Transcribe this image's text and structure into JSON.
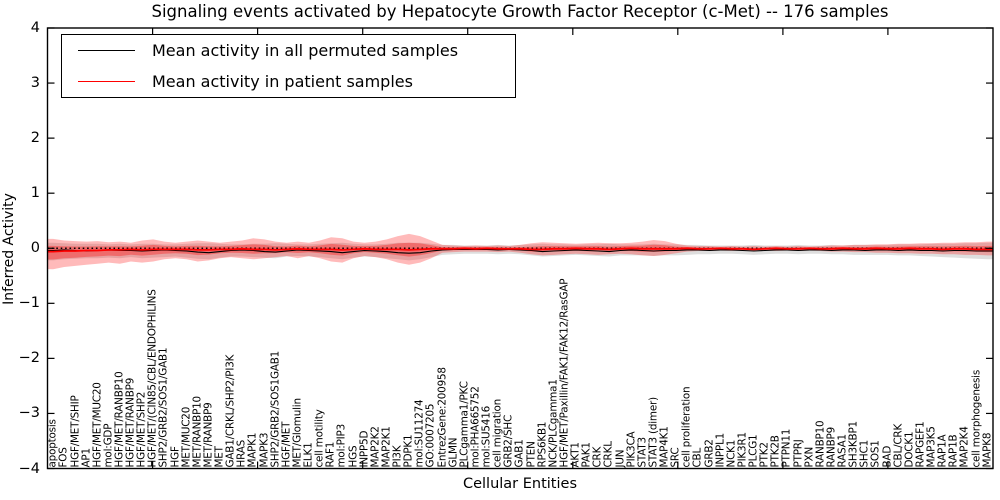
{
  "title": "Signaling events activated by Hepatocyte Growth Factor Receptor (c-Met) -- 176 samples",
  "axes": {
    "y_label": "Inferred Activity",
    "x_label": "Cellular Entities",
    "y_ticks": [
      "4",
      "3",
      "2",
      "1",
      "0",
      "−1",
      "−2",
      "−3",
      "−4"
    ],
    "y_range": [
      -4,
      4
    ]
  },
  "legend": {
    "items": [
      {
        "label": "Mean activity in all permuted samples",
        "color": "#000000"
      },
      {
        "label": "Mean activity in patient samples",
        "color": "#ff0000"
      }
    ]
  },
  "chart_data": {
    "type": "line",
    "title": "Signaling events activated by Hepatocyte Growth Factor Receptor (c-Met) -- 176 samples",
    "xlabel": "Cellular Entities",
    "ylabel": "Inferred Activity",
    "ylim": [
      -4,
      4
    ],
    "grid": false,
    "legend_position": "upper left",
    "zero_line": {
      "y": 0,
      "style": "dotted",
      "color": "#000000"
    },
    "colors": {
      "permuted_line": "#000000",
      "patient_line": "#ff0000",
      "permuted_band": "rgba(0,0,0,0.13)",
      "patient_band": "rgba(255,0,0,0.27)",
      "patient_band_inner": "rgba(255,0,0,0.33)"
    },
    "categories": [
      "apoptosis",
      "FOS",
      "HGF/MET/SHIP",
      "AP1",
      "HGF/MET/MUC20",
      "mol:GDP",
      "HGF/MET/RANBP10",
      "HGF/MET/RANBP9",
      "HGF/MET/SHP2",
      "HGF/MET/(CIN85/CBL/ENDOPHILINS",
      "SHP2/GRB2/SOS1/GAB1",
      "HGF",
      "MET/MUC20",
      "MET/RANBP10",
      "MET/RANBP9",
      "MET",
      "GAB1/CRKL/SHP2/PI3K",
      "HRAS",
      "MAPK1",
      "MAPK3",
      "SHP2/GRB2/SOS1GAB1",
      "HGF/MET",
      "MET/Glomulin",
      "ELK1",
      "cell motility",
      "RAF1",
      "mol:PIP3",
      "HGS",
      "INPP5D",
      "MAP2K2",
      "MAP2K1",
      "PI3K",
      "PDPK1",
      "mol:SU11274",
      "GO:0007205",
      "EntrezGene:200958",
      "GLMN",
      "PLCgamma1/PKC",
      "mol:PHA665752",
      "mol:SU5416",
      "cell migration",
      "GRB2/SHC",
      "GAB1",
      "PTEN",
      "RPS6KB1",
      "NCK/PLCgamma1",
      "HGF/MET/Paxillin/FAK1/FAK12/RasGAP",
      "AKT1",
      "PAK1",
      "CRK",
      "CRKL",
      "JUN",
      "PIK3CA",
      "STAT3",
      "STAT3 (dimer)",
      "MAP4K1",
      "SRC",
      "cell proliferation",
      "CBL",
      "GRB2",
      "INPPL1",
      "NCK1",
      "PIK3R1",
      "PLCG1",
      "PTK2",
      "PTK2B",
      "PTPN11",
      "PTPRJ",
      "PXN",
      "RANBP10",
      "RANBP9",
      "RASA1",
      "SH3KBP1",
      "SHC1",
      "SOS1",
      "BAD",
      "CBL/CRK",
      "DOCK1",
      "RAPGEF1",
      "MAP3K5",
      "RAP1A",
      "RAP1B",
      "MAP2K4",
      "cell morphogenesis",
      "MAPK8"
    ],
    "series": [
      {
        "name": "Mean activity in all permuted samples",
        "color": "#000000",
        "values": [
          -0.04,
          -0.03,
          -0.04,
          -0.05,
          -0.04,
          -0.03,
          -0.04,
          -0.04,
          -0.05,
          -0.04,
          -0.03,
          -0.04,
          -0.05,
          -0.07,
          -0.08,
          -0.06,
          -0.04,
          -0.03,
          -0.04,
          -0.06,
          -0.07,
          -0.05,
          -0.03,
          -0.04,
          -0.05,
          -0.06,
          -0.08,
          -0.06,
          -0.04,
          -0.05,
          -0.06,
          -0.08,
          -0.09,
          -0.08,
          -0.05,
          -0.03,
          -0.02,
          -0.02,
          -0.02,
          -0.02,
          -0.03,
          -0.02,
          -0.03,
          -0.04,
          -0.06,
          -0.05,
          -0.04,
          -0.03,
          -0.04,
          -0.05,
          -0.06,
          -0.04,
          -0.03,
          -0.04,
          -0.05,
          -0.04,
          -0.04,
          -0.03,
          -0.03,
          -0.04,
          -0.03,
          -0.03,
          -0.04,
          -0.05,
          -0.04,
          -0.03,
          -0.03,
          -0.04,
          -0.03,
          -0.03,
          -0.04,
          -0.03,
          -0.03,
          -0.04,
          -0.03,
          -0.03,
          -0.04,
          -0.03,
          -0.04,
          -0.04,
          -0.05,
          -0.04,
          -0.04,
          -0.05,
          -0.05
        ]
      },
      {
        "name": "Mean activity in patient samples",
        "color": "#ff0000",
        "values": [
          -0.06,
          -0.05,
          -0.05,
          -0.04,
          -0.04,
          -0.03,
          -0.03,
          -0.02,
          -0.03,
          -0.02,
          -0.02,
          -0.02,
          -0.02,
          -0.03,
          -0.03,
          -0.02,
          -0.02,
          -0.01,
          -0.02,
          -0.02,
          -0.03,
          -0.02,
          -0.01,
          -0.02,
          -0.02,
          -0.02,
          -0.03,
          -0.02,
          -0.01,
          -0.02,
          -0.02,
          -0.02,
          -0.03,
          -0.02,
          -0.01,
          -0.01,
          -0.01,
          0,
          -0.01,
          0,
          -0.01,
          -0.01,
          -0.01,
          -0.02,
          -0.02,
          -0.01,
          -0.01,
          0,
          -0.01,
          -0.01,
          -0.02,
          -0.01,
          0,
          -0.01,
          -0.01,
          -0.01,
          -0.01,
          0,
          -0.01,
          -0.01,
          0,
          -0.01,
          -0.01,
          -0.02,
          -0.01,
          0,
          -0.01,
          -0.01,
          0,
          -0.01,
          -0.01,
          0,
          -0.01,
          -0.01,
          0,
          -0.01,
          -0.01,
          0,
          -0.01,
          -0.01,
          -0.02,
          -0.01,
          -0.01,
          -0.02,
          -0.02
        ]
      }
    ],
    "bands": [
      {
        "name": "permuted-sample-range",
        "upper": [
          0.1,
          0.09,
          0.08,
          0.08,
          0.08,
          0.07,
          0.08,
          0.07,
          0.08,
          0.08,
          0.07,
          0.07,
          0.08,
          0.09,
          0.09,
          0.08,
          0.07,
          0.07,
          0.08,
          0.08,
          0.09,
          0.08,
          0.07,
          0.07,
          0.08,
          0.09,
          0.1,
          0.08,
          0.07,
          0.07,
          0.08,
          0.1,
          0.1,
          0.1,
          0.08,
          0.06,
          0.06,
          0.05,
          0.05,
          0.05,
          0.06,
          0.05,
          0.06,
          0.07,
          0.08,
          0.07,
          0.07,
          0.06,
          0.07,
          0.07,
          0.08,
          0.07,
          0.07,
          0.07,
          0.08,
          0.07,
          0.07,
          0.06,
          0.06,
          0.05,
          0.05,
          0.05,
          0.05,
          0.06,
          0.05,
          0.05,
          0.05,
          0.06,
          0.05,
          0.05,
          0.06,
          0.05,
          0.06,
          0.06,
          0.06,
          0.06,
          0.07,
          0.07,
          0.07,
          0.08,
          0.08,
          0.08,
          0.09,
          0.09,
          0.1
        ],
        "lower": [
          -0.22,
          -0.2,
          -0.19,
          -0.18,
          -0.18,
          -0.17,
          -0.18,
          -0.16,
          -0.18,
          -0.17,
          -0.16,
          -0.15,
          -0.17,
          -0.19,
          -0.2,
          -0.17,
          -0.15,
          -0.15,
          -0.16,
          -0.17,
          -0.18,
          -0.15,
          -0.14,
          -0.15,
          -0.16,
          -0.18,
          -0.2,
          -0.17,
          -0.15,
          -0.16,
          -0.18,
          -0.2,
          -0.22,
          -0.2,
          -0.16,
          -0.12,
          -0.11,
          -0.1,
          -0.1,
          -0.1,
          -0.11,
          -0.1,
          -0.11,
          -0.13,
          -0.15,
          -0.14,
          -0.13,
          -0.12,
          -0.13,
          -0.14,
          -0.15,
          -0.13,
          -0.13,
          -0.13,
          -0.14,
          -0.13,
          -0.13,
          -0.12,
          -0.11,
          -0.11,
          -0.1,
          -0.1,
          -0.11,
          -0.12,
          -0.11,
          -0.1,
          -0.1,
          -0.11,
          -0.1,
          -0.1,
          -0.11,
          -0.11,
          -0.12,
          -0.12,
          -0.12,
          -0.12,
          -0.13,
          -0.13,
          -0.14,
          -0.15,
          -0.16,
          -0.17,
          -0.18,
          -0.19,
          -0.2
        ]
      },
      {
        "name": "patient-sample-range",
        "upper": [
          0.17,
          0.14,
          0.13,
          0.12,
          0.13,
          0.11,
          0.12,
          0.1,
          0.14,
          0.16,
          0.12,
          0.1,
          0.12,
          0.14,
          0.12,
          0.1,
          0.12,
          0.14,
          0.18,
          0.16,
          0.12,
          0.1,
          0.12,
          0.1,
          0.14,
          0.2,
          0.18,
          0.12,
          0.1,
          0.12,
          0.16,
          0.22,
          0.26,
          0.22,
          0.14,
          0.06,
          0.05,
          0.04,
          0.05,
          0.04,
          0.05,
          0.04,
          0.06,
          0.09,
          0.11,
          0.1,
          0.09,
          0.08,
          0.09,
          0.1,
          0.09,
          0.09,
          0.1,
          0.12,
          0.15,
          0.13,
          0.08,
          0.05,
          0.04,
          0.04,
          0.03,
          0.04,
          0.03,
          0.04,
          0.03,
          0.04,
          0.03,
          0.04,
          0.03,
          0.04,
          0.05,
          0.05,
          0.06,
          0.06,
          0.07,
          0.07,
          0.08,
          0.08,
          0.09,
          0.09,
          0.1,
          0.1,
          0.11,
          0.11,
          0.12
        ],
        "lower": [
          -0.38,
          -0.34,
          -0.32,
          -0.3,
          -0.28,
          -0.26,
          -0.28,
          -0.24,
          -0.26,
          -0.24,
          -0.2,
          -0.18,
          -0.2,
          -0.24,
          -0.22,
          -0.18,
          -0.16,
          -0.18,
          -0.2,
          -0.18,
          -0.16,
          -0.14,
          -0.18,
          -0.14,
          -0.18,
          -0.24,
          -0.26,
          -0.18,
          -0.14,
          -0.16,
          -0.2,
          -0.26,
          -0.3,
          -0.26,
          -0.18,
          -0.08,
          -0.07,
          -0.06,
          -0.06,
          -0.06,
          -0.07,
          -0.06,
          -0.08,
          -0.11,
          -0.13,
          -0.12,
          -0.11,
          -0.1,
          -0.11,
          -0.12,
          -0.11,
          -0.1,
          -0.11,
          -0.13,
          -0.14,
          -0.12,
          -0.09,
          -0.06,
          -0.05,
          -0.05,
          -0.04,
          -0.05,
          -0.04,
          -0.05,
          -0.04,
          -0.05,
          -0.04,
          -0.05,
          -0.04,
          -0.05,
          -0.06,
          -0.06,
          -0.07,
          -0.07,
          -0.08,
          -0.08,
          -0.09,
          -0.09,
          -0.1,
          -0.1,
          -0.11,
          -0.11,
          -0.12,
          -0.12,
          -0.13
        ]
      }
    ]
  }
}
